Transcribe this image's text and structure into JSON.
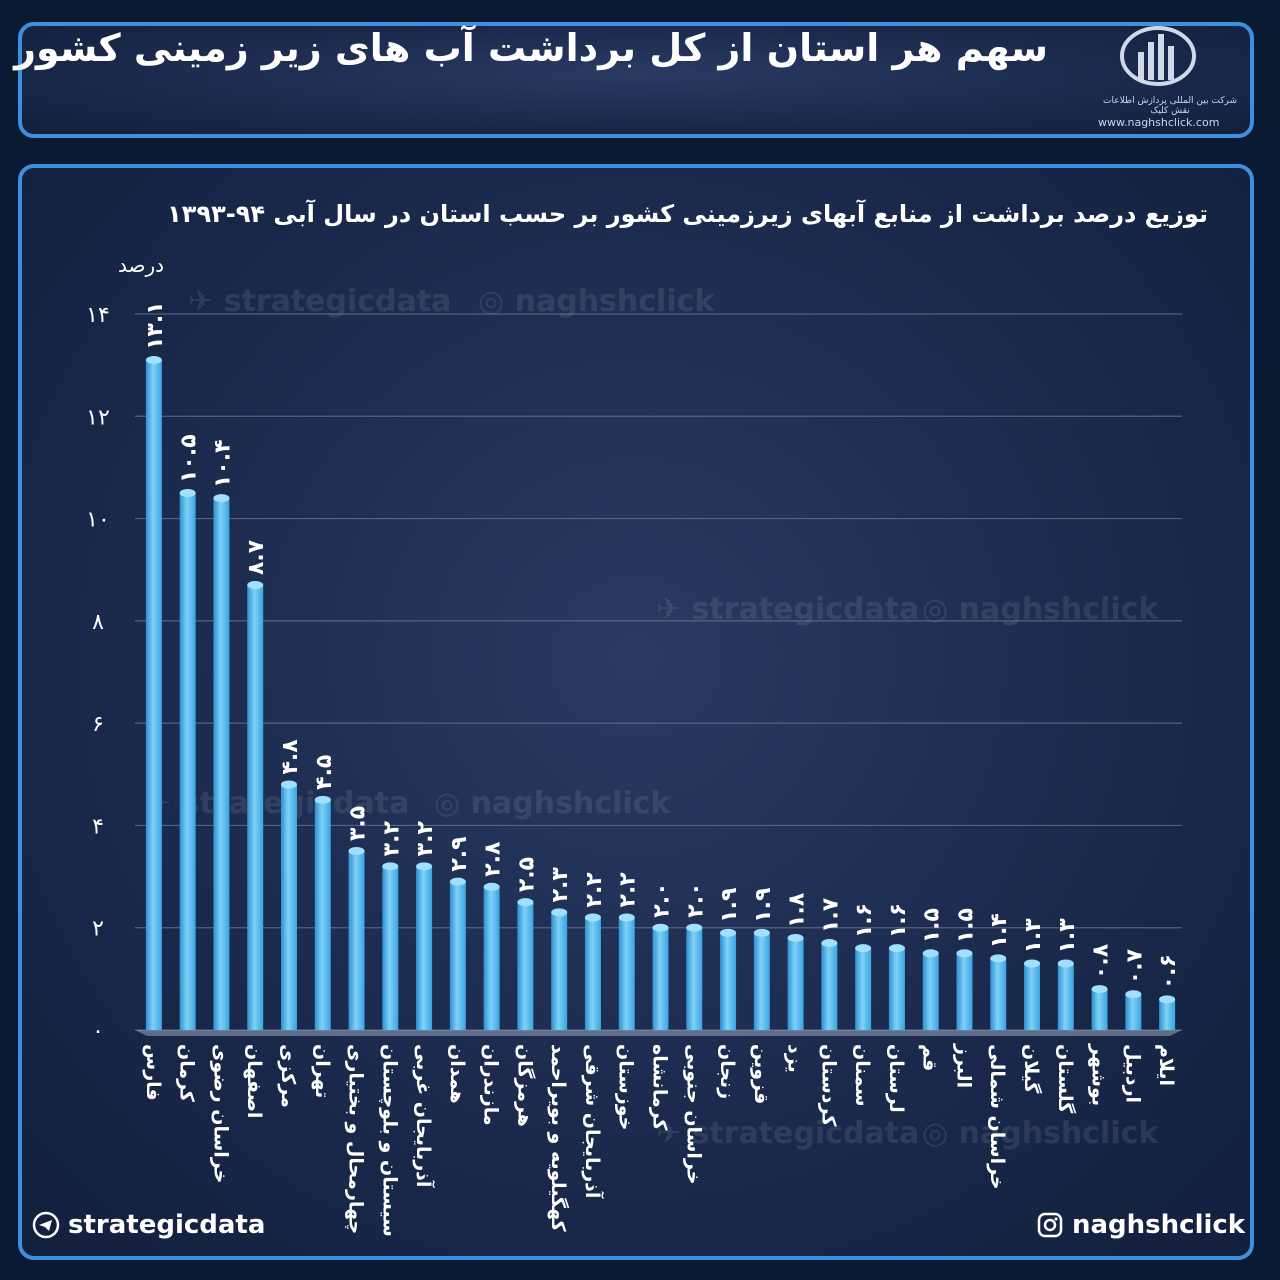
{
  "header": {
    "title": "سهم هر استان از کل برداشت آب های زیر زمینی کشور",
    "logo_url": "www.naghshclick.com",
    "logo_tagline": "شرکت بین المللی پردازش اطلاعات نقش کلیک"
  },
  "chart_data": {
    "type": "bar",
    "title": "توزیع درصد برداشت از منابع آبهای زیرزمینی کشور بر حسب استان در سال آبی ۹۴-۱۳۹۳",
    "ylabel": "درصد",
    "xlabel": "",
    "ylim": [
      0,
      14
    ],
    "yticks": [
      0,
      2,
      4,
      6,
      8,
      10,
      12,
      14
    ],
    "ytick_labels": [
      "۰",
      "۲",
      "۴",
      "۶",
      "۸",
      "۱۰",
      "۱۲",
      "۱۴"
    ],
    "grid": true,
    "bar_color": "#4fb7ec",
    "categories": [
      "فارس",
      "کرمان",
      "خراسان رضوی",
      "اصفهان",
      "مرکزی",
      "تهران",
      "چهارمحال و بختیاری",
      "سیستان و بلوچستان",
      "آذربایجان غربی",
      "همدان",
      "مازندران",
      "هرمزگان",
      "کهگیلویه و بویراحمد",
      "آذربایجان شرقی",
      "خوزستان",
      "کرمانشاه",
      "خراسان جنوبی",
      "زنجان",
      "قزوین",
      "یزد",
      "کردستان",
      "سمنان",
      "لرستان",
      "قم",
      "البرز",
      "خراسان شمالی",
      "گیلان",
      "گلستان",
      "بوشهر",
      "اردبیل",
      "ایلام"
    ],
    "values": [
      13.1,
      10.5,
      10.4,
      8.7,
      4.8,
      4.5,
      3.5,
      3.2,
      3.2,
      2.9,
      2.8,
      2.5,
      2.3,
      2.2,
      2.2,
      2.0,
      2.0,
      1.9,
      1.9,
      1.8,
      1.7,
      1.6,
      1.6,
      1.5,
      1.5,
      1.4,
      1.3,
      1.3,
      0.8,
      0.7,
      0.6
    ],
    "value_labels": [
      "۱۳.۱",
      "۱۰.۵",
      "۱۰.۴",
      "۸.۷",
      "۴.۸",
      "۴.۵",
      "۳.۵",
      "۳.۲",
      "۳.۲",
      "۲.۹",
      "۲.۸",
      "۲.۵",
      "۲.۳",
      "۲.۲",
      "۲.۲",
      "۲.۰",
      "۲.۰",
      "۱.۹",
      "۱.۹",
      "۱.۸",
      "۱.۷",
      "۱.۶",
      "۱.۶",
      "۱.۵",
      "۱.۵",
      "۱.۴",
      "۱.۳",
      "۱.۳",
      "۰.۸",
      "۰.۷",
      "۰.۶"
    ]
  },
  "watermarks": [
    "strategicdata",
    "naghshclick"
  ],
  "footer": {
    "left": "strategicdata",
    "right": "naghshclick"
  }
}
